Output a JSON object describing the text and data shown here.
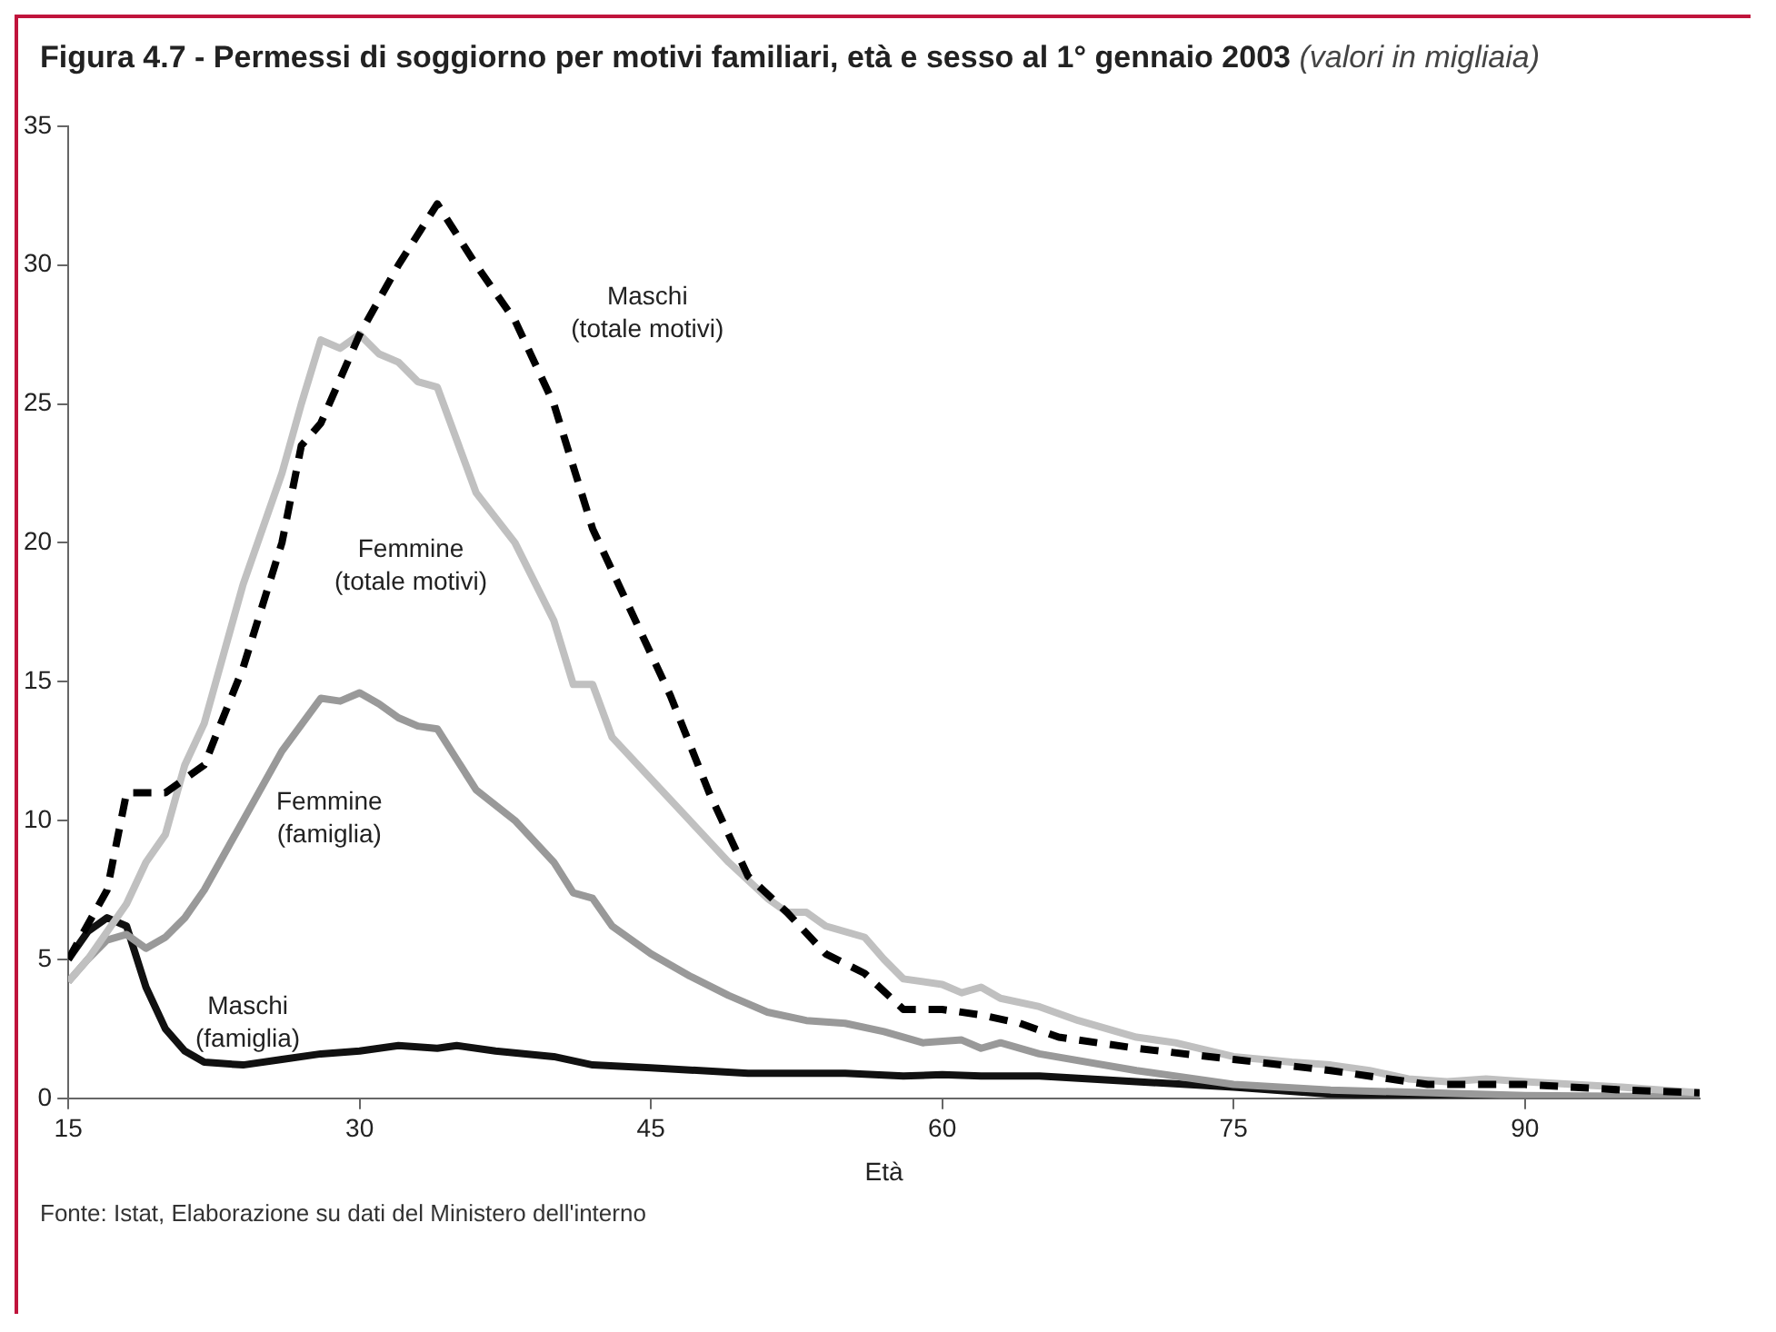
{
  "chart_data": {
    "type": "line",
    "title": "Figura 4.7 - Permessi di soggiorno per motivi familiari, età e sesso al 1° gennaio 2003",
    "subtitle": "(valori in migliaia)",
    "xlabel": "Età",
    "xlim": [
      15,
      99
    ],
    "xticks": [
      15,
      30,
      45,
      60,
      75,
      90
    ],
    "ylim": [
      0,
      35
    ],
    "yticks": [
      0,
      5,
      10,
      15,
      20,
      25,
      30,
      35
    ],
    "legend": false,
    "annotations": [
      "Fonte: Istat, Elaborazione su dati del Ministero dell'interno"
    ],
    "series": [
      {
        "name": "Maschi (totale motivi)",
        "color": "#000000",
        "line_style": "dashed",
        "x": [
          15,
          17,
          18,
          20,
          22,
          24,
          26,
          27,
          28,
          30,
          32,
          34,
          36,
          38,
          40,
          42,
          44,
          46,
          48,
          50,
          52,
          54,
          56,
          58,
          60,
          62,
          64,
          66,
          70,
          75,
          80,
          85,
          90,
          95,
          99
        ],
        "values": [
          5,
          7.5,
          11,
          11,
          12,
          15.5,
          20,
          23.5,
          24.3,
          27.5,
          30,
          32.2,
          30,
          28,
          25,
          20.5,
          17.5,
          14.5,
          11,
          8,
          6.7,
          5.2,
          4.5,
          3.2,
          3.2,
          3,
          2.7,
          2.2,
          1.8,
          1.4,
          1,
          0.5,
          0.5,
          0.3,
          0.2
        ]
      },
      {
        "name": "Femmine (totale motivi)",
        "color": "#c0c0c0",
        "x": [
          15,
          16,
          18,
          19,
          20,
          21,
          22,
          24,
          26,
          27,
          28,
          29,
          30,
          31,
          32,
          33,
          34,
          36,
          38,
          40,
          41,
          42,
          43,
          45,
          47,
          49,
          51,
          52,
          53,
          54,
          56,
          57,
          58,
          60,
          61,
          62,
          63,
          65,
          67,
          70,
          72,
          75,
          78,
          80,
          82,
          84,
          86,
          88,
          90,
          95,
          99
        ],
        "values": [
          4.2,
          5,
          7,
          8.5,
          9.5,
          12,
          13.5,
          18.5,
          22.5,
          25,
          27.3,
          27,
          27.5,
          26.8,
          26.5,
          25.8,
          25.6,
          21.8,
          20,
          17.2,
          14.9,
          14.9,
          13,
          11.5,
          10,
          8.5,
          7.2,
          6.7,
          6.7,
          6.2,
          5.8,
          5,
          4.3,
          4.1,
          3.8,
          4,
          3.6,
          3.3,
          2.8,
          2.2,
          2,
          1.5,
          1.3,
          1.2,
          1,
          0.7,
          0.6,
          0.7,
          0.6,
          0.4,
          0.2
        ]
      },
      {
        "name": "Femmine (famiglia)",
        "color": "#999999",
        "x": [
          15,
          16,
          17,
          18,
          19,
          20,
          21,
          22,
          24,
          26,
          28,
          29,
          30,
          31,
          32,
          33,
          34,
          36,
          38,
          40,
          41,
          42,
          43,
          45,
          47,
          49,
          51,
          53,
          55,
          57,
          59,
          61,
          62,
          63,
          65,
          70,
          75,
          80,
          90,
          99
        ],
        "values": [
          4.2,
          5,
          5.7,
          5.9,
          5.4,
          5.8,
          6.5,
          7.5,
          10,
          12.5,
          14.4,
          14.3,
          14.6,
          14.2,
          13.7,
          13.4,
          13.3,
          11.1,
          10,
          8.5,
          7.4,
          7.2,
          6.2,
          5.2,
          4.4,
          3.7,
          3.1,
          2.8,
          2.7,
          2.4,
          2,
          2.1,
          1.8,
          2,
          1.6,
          1,
          0.5,
          0.3,
          0.1,
          0.05
        ]
      },
      {
        "name": "Maschi (famiglia)",
        "color": "#111111",
        "x": [
          15,
          16,
          17,
          18,
          19,
          20,
          21,
          22,
          24,
          26,
          28,
          30,
          32,
          34,
          35,
          37,
          40,
          42,
          45,
          50,
          55,
          58,
          60,
          62,
          65,
          70,
          75,
          80,
          85,
          99
        ],
        "values": [
          5,
          6,
          6.5,
          6.2,
          4,
          2.5,
          1.7,
          1.3,
          1.2,
          1.4,
          1.6,
          1.7,
          1.9,
          1.8,
          1.9,
          1.7,
          1.5,
          1.2,
          1.1,
          0.9,
          0.9,
          0.8,
          0.85,
          0.8,
          0.8,
          0.6,
          0.4,
          0.15,
          0.05,
          0
        ]
      }
    ]
  }
}
